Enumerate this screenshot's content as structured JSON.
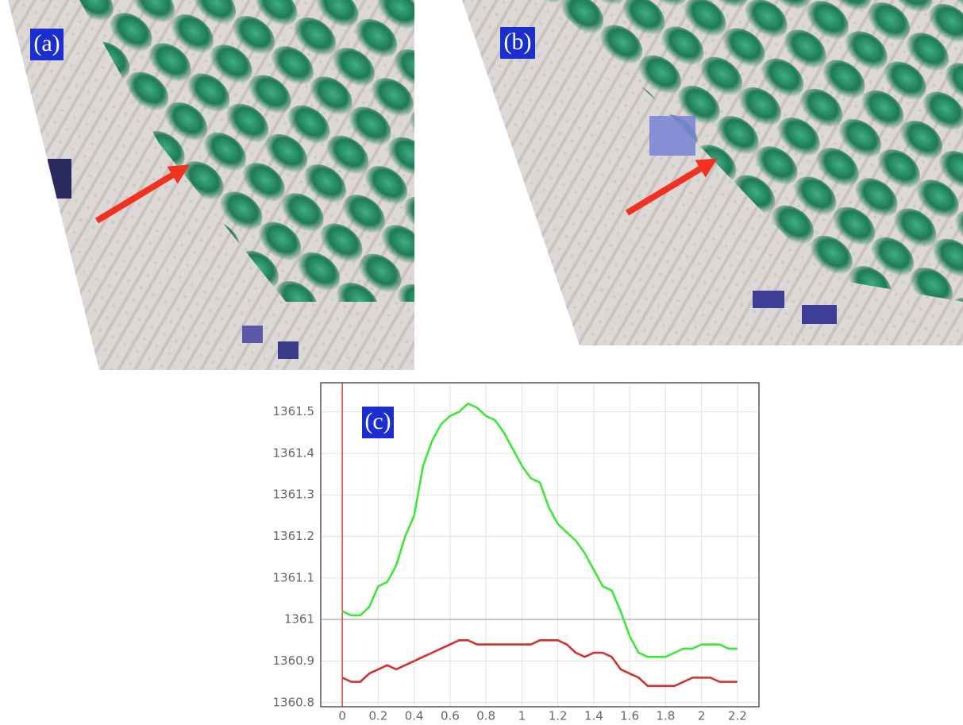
{
  "panels": [
    {
      "label": "(a)"
    },
    {
      "label": "(b)"
    }
  ],
  "chart_data": {
    "type": "line",
    "annotation": "(c)",
    "x": [
      0,
      0.05,
      0.1,
      0.15,
      0.2,
      0.25,
      0.3,
      0.35,
      0.4,
      0.45,
      0.5,
      0.55,
      0.6,
      0.65,
      0.7,
      0.75,
      0.8,
      0.85,
      0.9,
      0.95,
      1.0,
      1.05,
      1.1,
      1.15,
      1.2,
      1.25,
      1.3,
      1.35,
      1.4,
      1.45,
      1.5,
      1.55,
      1.6,
      1.65,
      1.7,
      1.75,
      1.8,
      1.85,
      1.9,
      1.95,
      2.0,
      2.05,
      2.1,
      2.15,
      2.2
    ],
    "series": [
      {
        "color": "#3ee63a",
        "values": [
          1361.02,
          1361.01,
          1361.01,
          1361.03,
          1361.08,
          1361.09,
          1361.13,
          1361.2,
          1361.25,
          1361.37,
          1361.43,
          1361.47,
          1361.49,
          1361.5,
          1361.52,
          1361.51,
          1361.49,
          1361.48,
          1361.45,
          1361.41,
          1361.37,
          1361.34,
          1361.33,
          1361.27,
          1361.23,
          1361.21,
          1361.19,
          1361.16,
          1361.12,
          1361.08,
          1361.07,
          1361.02,
          1360.96,
          1360.92,
          1360.91,
          1360.91,
          1360.91,
          1360.92,
          1360.93,
          1360.93,
          1360.94,
          1360.94,
          1360.94,
          1360.93,
          1360.93
        ]
      },
      {
        "color": "#d3302a",
        "values": [
          1360.86,
          1360.85,
          1360.85,
          1360.87,
          1360.88,
          1360.89,
          1360.88,
          1360.89,
          1360.9,
          1360.91,
          1360.92,
          1360.93,
          1360.94,
          1360.95,
          1360.95,
          1360.94,
          1360.94,
          1360.94,
          1360.94,
          1360.94,
          1360.94,
          1360.94,
          1360.95,
          1360.95,
          1360.95,
          1360.94,
          1360.92,
          1360.91,
          1360.92,
          1360.92,
          1360.91,
          1360.88,
          1360.87,
          1360.86,
          1360.84,
          1360.84,
          1360.84,
          1360.84,
          1360.85,
          1360.86,
          1360.86,
          1360.86,
          1360.85,
          1360.85,
          1360.85
        ]
      }
    ],
    "xlim": [
      -0.12,
      2.32
    ],
    "xticks": [
      0,
      0.2,
      0.4,
      0.6,
      0.8,
      1,
      1.2,
      1.4,
      1.6,
      1.8,
      2,
      2.2
    ],
    "ylim": [
      1360.79,
      1361.57
    ],
    "yticks": [
      1360.8,
      1360.9,
      1361,
      1361.1,
      1361.2,
      1361.3,
      1361.4,
      1361.5
    ],
    "grid": true,
    "vline": {
      "x": 0,
      "color": "#e0443a"
    },
    "hline": 1361
  }
}
